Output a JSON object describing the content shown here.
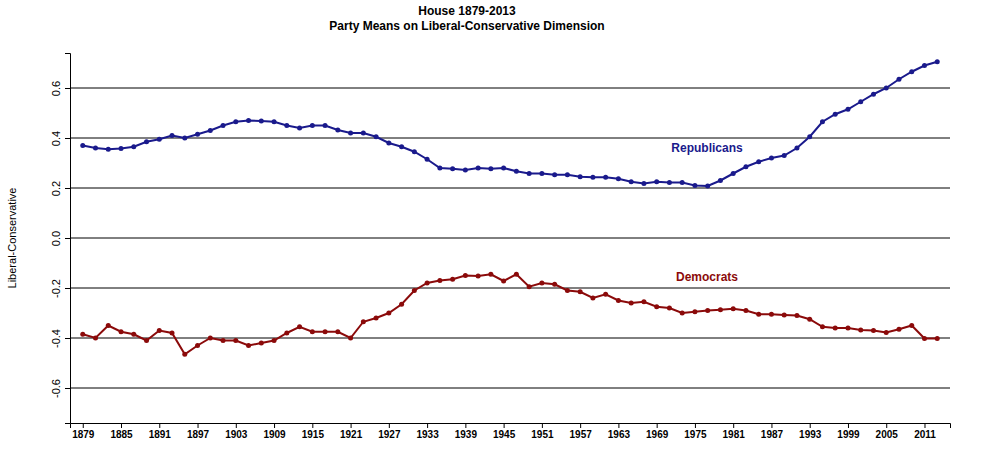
{
  "chart_data": {
    "type": "line",
    "title": "House 1879-2013",
    "subtitle": "Party Means on Liberal-Conservative Dimension",
    "y_label": "Liberal-Conservative",
    "x": [
      1879,
      1881,
      1883,
      1885,
      1887,
      1889,
      1891,
      1893,
      1895,
      1897,
      1899,
      1901,
      1903,
      1905,
      1907,
      1909,
      1911,
      1913,
      1915,
      1917,
      1919,
      1921,
      1923,
      1925,
      1927,
      1929,
      1931,
      1933,
      1935,
      1937,
      1939,
      1941,
      1943,
      1945,
      1947,
      1949,
      1951,
      1953,
      1955,
      1957,
      1959,
      1961,
      1963,
      1965,
      1967,
      1969,
      1971,
      1973,
      1975,
      1977,
      1979,
      1981,
      1983,
      1985,
      1987,
      1989,
      1991,
      1993,
      1995,
      1997,
      1999,
      2001,
      2003,
      2005,
      2007,
      2009,
      2011,
      2013
    ],
    "series": [
      {
        "name": "Republicans",
        "color": "#1a1a8c",
        "marker": "circle",
        "line_style": "solid",
        "values": [
          0.37,
          0.36,
          0.355,
          0.358,
          0.365,
          0.385,
          0.395,
          0.41,
          0.4,
          0.415,
          0.43,
          0.45,
          0.465,
          0.47,
          0.468,
          0.465,
          0.45,
          0.44,
          0.45,
          0.45,
          0.432,
          0.42,
          0.42,
          0.405,
          0.38,
          0.365,
          0.345,
          0.315,
          0.28,
          0.277,
          0.272,
          0.28,
          0.277,
          0.28,
          0.267,
          0.258,
          0.258,
          0.253,
          0.253,
          0.245,
          0.243,
          0.243,
          0.237,
          0.225,
          0.218,
          0.225,
          0.222,
          0.222,
          0.21,
          0.208,
          0.23,
          0.258,
          0.285,
          0.305,
          0.32,
          0.33,
          0.36,
          0.405,
          0.465,
          0.495,
          0.515,
          0.545,
          0.575,
          0.6,
          0.635,
          0.665,
          0.69,
          0.705
        ]
      },
      {
        "name": "Democrats",
        "color": "#8b0a0a",
        "marker": "circle",
        "line_style": "solid",
        "values": [
          -0.385,
          -0.4,
          -0.35,
          -0.375,
          -0.385,
          -0.41,
          -0.37,
          -0.38,
          -0.465,
          -0.43,
          -0.4,
          -0.41,
          -0.41,
          -0.43,
          -0.42,
          -0.41,
          -0.38,
          -0.355,
          -0.375,
          -0.375,
          -0.375,
          -0.4,
          -0.335,
          -0.32,
          -0.3,
          -0.265,
          -0.21,
          -0.18,
          -0.17,
          -0.165,
          -0.15,
          -0.152,
          -0.145,
          -0.172,
          -0.145,
          -0.195,
          -0.18,
          -0.185,
          -0.21,
          -0.215,
          -0.24,
          -0.225,
          -0.25,
          -0.26,
          -0.255,
          -0.275,
          -0.28,
          -0.3,
          -0.295,
          -0.29,
          -0.287,
          -0.283,
          -0.29,
          -0.305,
          -0.305,
          -0.308,
          -0.31,
          -0.325,
          -0.355,
          -0.36,
          -0.36,
          -0.368,
          -0.37,
          -0.378,
          -0.365,
          -0.35,
          -0.402,
          -0.402
        ]
      }
    ],
    "xlim": [
      1877,
      2015
    ],
    "xticks": [
      1879,
      1885,
      1891,
      1897,
      1903,
      1909,
      1915,
      1921,
      1927,
      1933,
      1939,
      1945,
      1951,
      1957,
      1963,
      1969,
      1975,
      1981,
      1987,
      1993,
      1999,
      2005,
      2011
    ],
    "ylim": [
      -0.74,
      0.74
    ],
    "yticks": [
      -0.6,
      -0.4,
      -0.2,
      {
        "value": 0,
        "label": "0.0"
      },
      0.2,
      0.4,
      0.6
    ],
    "grid": true
  }
}
